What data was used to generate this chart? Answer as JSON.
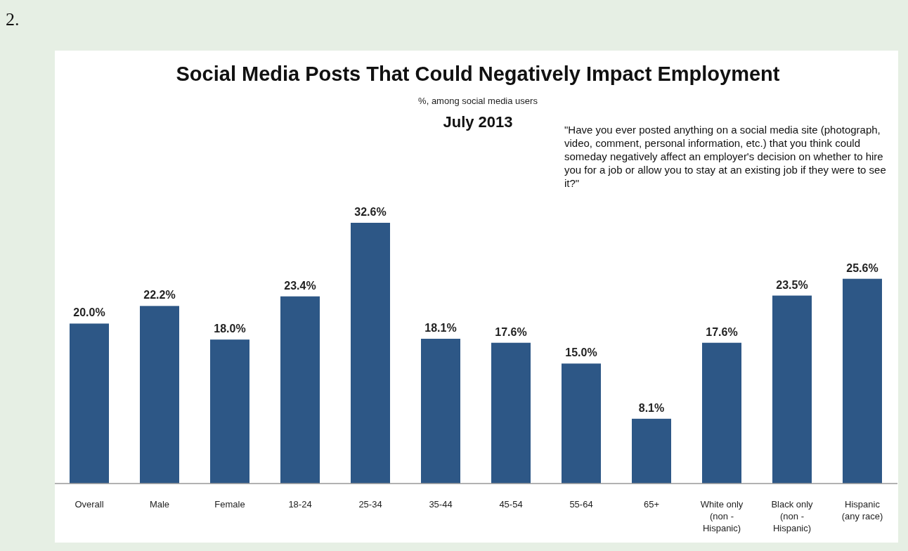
{
  "chart_data": {
    "type": "bar",
    "title": "Social Media Posts That Could Negatively Impact Employment",
    "subtitle": "%, among social media users",
    "annotations": [
      "2.",
      "July 2013",
      "\"Have you ever posted anything on a social media site (photograph, video, comment, personal information, etc.) that you think could someday negatively affect an employer's decision on whether to hire you for a job or allow you to stay at an existing job if they were to see it?\""
    ],
    "categories": [
      "Overall",
      "Male",
      "Female",
      "18-24",
      "25-34",
      "35-44",
      "45-54",
      "55-64",
      "65+",
      "White only\n(non -\nHispanic)",
      "Black only\n(non -\nHispanic)",
      "Hispanic\n(any race)"
    ],
    "values": [
      20.0,
      22.2,
      18.0,
      23.4,
      32.6,
      18.1,
      17.6,
      15.0,
      8.1,
      17.6,
      23.5,
      25.6
    ],
    "value_labels": [
      "20.0%",
      "22.2%",
      "18.0%",
      "23.4%",
      "32.6%",
      "18.1%",
      "17.6%",
      "15.0%",
      "8.1%",
      "17.6%",
      "23.5%",
      "25.6%"
    ],
    "color": "#2d5786"
  }
}
